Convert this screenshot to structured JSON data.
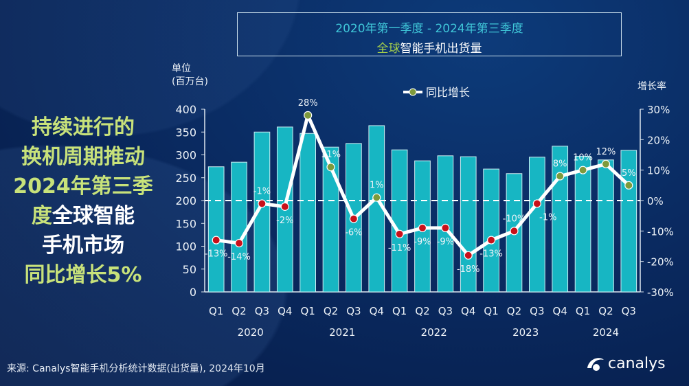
{
  "title": {
    "line1": "2020年第一季度 - 2024年第三季度",
    "line2_highlight": "全球",
    "line2_rest": "智能手机出货量"
  },
  "headline": {
    "lines": [
      "持续进行的",
      "换机周期推动",
      "2024年第三季"
    ],
    "line4_green": "度",
    "line4_white": "全球智能",
    "line5": "手机市场",
    "line6": "同比增长5%"
  },
  "source": "来源: Canalys智能手机分析统计数据(出货量), 2024年10月",
  "logo": {
    "text": "canalys"
  },
  "colors": {
    "bar": "#17b6c3",
    "line": "#ffffff",
    "positive_marker": "#7e9a3c",
    "negative_marker": "#c8101a",
    "background": "#0a2b62"
  },
  "chart_data": {
    "type": "bar+line",
    "ylabel_left": "单位\n(百万台)",
    "ylabel_left_lines": [
      "单位",
      "(百万台)"
    ],
    "ylabel_right": "增长率",
    "legend": {
      "label": "同比增长",
      "position": "top"
    },
    "left_axis": {
      "range": [
        0,
        400
      ],
      "ticks": [
        "0",
        "50",
        "100",
        "150",
        "200",
        "250",
        "300",
        "350",
        "400"
      ]
    },
    "right_axis": {
      "range": [
        -30,
        30
      ],
      "ticks": [
        "-30%",
        "-20%",
        "-10%",
        "0%",
        "10%",
        "20%",
        "30%"
      ]
    },
    "categories": [
      "Q1",
      "Q2",
      "Q3",
      "Q4",
      "Q1",
      "Q2",
      "Q3",
      "Q4",
      "Q1",
      "Q2",
      "Q3",
      "Q4",
      "Q1",
      "Q2",
      "Q3",
      "Q4",
      "Q1",
      "Q2",
      "Q3"
    ],
    "years": [
      "2020",
      "2021",
      "2022",
      "2023",
      "2024"
    ],
    "series": [
      {
        "type": "bar",
        "axis": "left",
        "values": [
          274,
          284,
          350,
          361,
          347,
          317,
          325,
          364,
          311,
          287,
          298,
          296,
          269,
          259,
          295,
          319,
          297,
          289,
          310
        ]
      },
      {
        "type": "line",
        "axis": "right",
        "name": "同比增长",
        "values": [
          -13,
          -14,
          -1,
          -2,
          28,
          11,
          -6,
          1,
          -11,
          -9,
          -9,
          -18,
          -13,
          -10,
          -1,
          8,
          10,
          12,
          5
        ],
        "labels": [
          "-13%",
          "-14%",
          "-1%",
          "-2%",
          "28%",
          "11%",
          "-6%",
          "1%",
          "-11%",
          "-9%",
          "-9%",
          "-18%",
          "-13%",
          "-10%",
          "-1%",
          "8%",
          "10%",
          "12%",
          "5%"
        ]
      }
    ],
    "zero_line": "dashed"
  }
}
